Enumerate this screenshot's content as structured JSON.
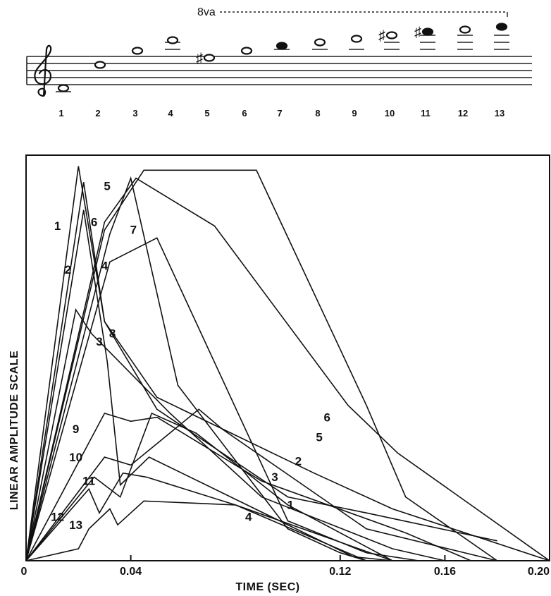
{
  "score": {
    "octave_marking": "8va",
    "clef": "treble-clef-icon",
    "notes": [
      {
        "number": "1",
        "accidental": ""
      },
      {
        "number": "2",
        "accidental": ""
      },
      {
        "number": "3",
        "accidental": ""
      },
      {
        "number": "4",
        "accidental": ""
      },
      {
        "number": "5",
        "accidental": "♯"
      },
      {
        "number": "6",
        "accidental": ""
      },
      {
        "number": "7",
        "accidental": ""
      },
      {
        "number": "8",
        "accidental": ""
      },
      {
        "number": "9",
        "accidental": ""
      },
      {
        "number": "10",
        "accidental": "♯"
      },
      {
        "number": "11",
        "accidental": "♯"
      },
      {
        "number": "12",
        "accidental": ""
      },
      {
        "number": "13",
        "accidental": ""
      }
    ]
  },
  "chart_data": {
    "type": "line",
    "title": "",
    "xlabel": "TIME (SEC)",
    "ylabel": "LINEAR AMPLITUDE SCALE",
    "xlim": [
      0,
      0.2
    ],
    "ylim": [
      0,
      100
    ],
    "xticks": [
      {
        "value": 0,
        "label": "0"
      },
      {
        "value": 0.04,
        "label": "0.04"
      },
      {
        "value": 0.12,
        "label": "0.12"
      },
      {
        "value": 0.16,
        "label": "0.16"
      },
      {
        "value": 0.2,
        "label": "0.20"
      }
    ],
    "grid": false,
    "legend": "labels-on-curves",
    "series": [
      {
        "name": "1",
        "x": [
          0,
          0.02,
          0.03,
          0.05,
          0.1,
          0.13,
          0.18
        ],
        "y": [
          0,
          99,
          60,
          38,
          16,
          12,
          5
        ]
      },
      {
        "name": "2",
        "x": [
          0,
          0.022,
          0.03,
          0.05,
          0.11,
          0.14,
          0.2
        ],
        "y": [
          0,
          95,
          60,
          41,
          22,
          13,
          0
        ]
      },
      {
        "name": "3",
        "x": [
          0,
          0.019,
          0.025,
          0.055,
          0.09,
          0.14,
          0.16
        ],
        "y": [
          0,
          63,
          57,
          37,
          16,
          3,
          0
        ]
      },
      {
        "name": "4",
        "x": [
          0,
          0.032,
          0.05,
          0.1,
          0.13,
          0.15
        ],
        "y": [
          0,
          75,
          81,
          10,
          2,
          0
        ]
      },
      {
        "name": "5",
        "x": [
          0,
          0.03,
          0.042,
          0.072,
          0.123,
          0.142,
          0.2
        ],
        "y": [
          0,
          85,
          96,
          84,
          39,
          27,
          0
        ]
      },
      {
        "name": "6",
        "x": [
          0,
          0.03,
          0.045,
          0.088,
          0.13,
          0.145,
          0.18
        ],
        "y": [
          0,
          83,
          98,
          98,
          39,
          16,
          0
        ]
      },
      {
        "name": "7",
        "x": [
          0,
          0.032,
          0.04,
          0.058,
          0.1,
          0.12,
          0.13
        ],
        "y": [
          0,
          82,
          96,
          44,
          8,
          2,
          0
        ]
      },
      {
        "name": "8",
        "x": [
          0,
          0.022,
          0.031,
          0.036,
          0.047,
          0.125,
          0.14
        ],
        "y": [
          0,
          88,
          50,
          19,
          26,
          1,
          0
        ]
      },
      {
        "name": "9",
        "x": [
          0,
          0.03,
          0.04,
          0.05,
          0.09,
          0.145,
          0.17
        ],
        "y": [
          0,
          37,
          35,
          36,
          20,
          7,
          0
        ]
      },
      {
        "name": "10",
        "x": [
          0,
          0.03,
          0.04,
          0.066,
          0.075,
          0.13,
          0.18
        ],
        "y": [
          0,
          26,
          24,
          38,
          33,
          8,
          0
        ]
      },
      {
        "name": "11",
        "x": [
          0,
          0.026,
          0.036,
          0.048,
          0.065,
          0.1,
          0.14
        ],
        "y": [
          0,
          21,
          16,
          37,
          32,
          14,
          0
        ]
      },
      {
        "name": "12",
        "x": [
          0,
          0.024,
          0.028,
          0.037,
          0.046,
          0.08,
          0.14
        ],
        "y": [
          0,
          18,
          12,
          22,
          21,
          14,
          0
        ]
      },
      {
        "name": "13",
        "x": [
          0,
          0.02,
          0.024,
          0.032,
          0.035,
          0.045,
          0.08,
          0.13
        ],
        "y": [
          0,
          3,
          8,
          13,
          9,
          15,
          14,
          0
        ]
      }
    ]
  }
}
